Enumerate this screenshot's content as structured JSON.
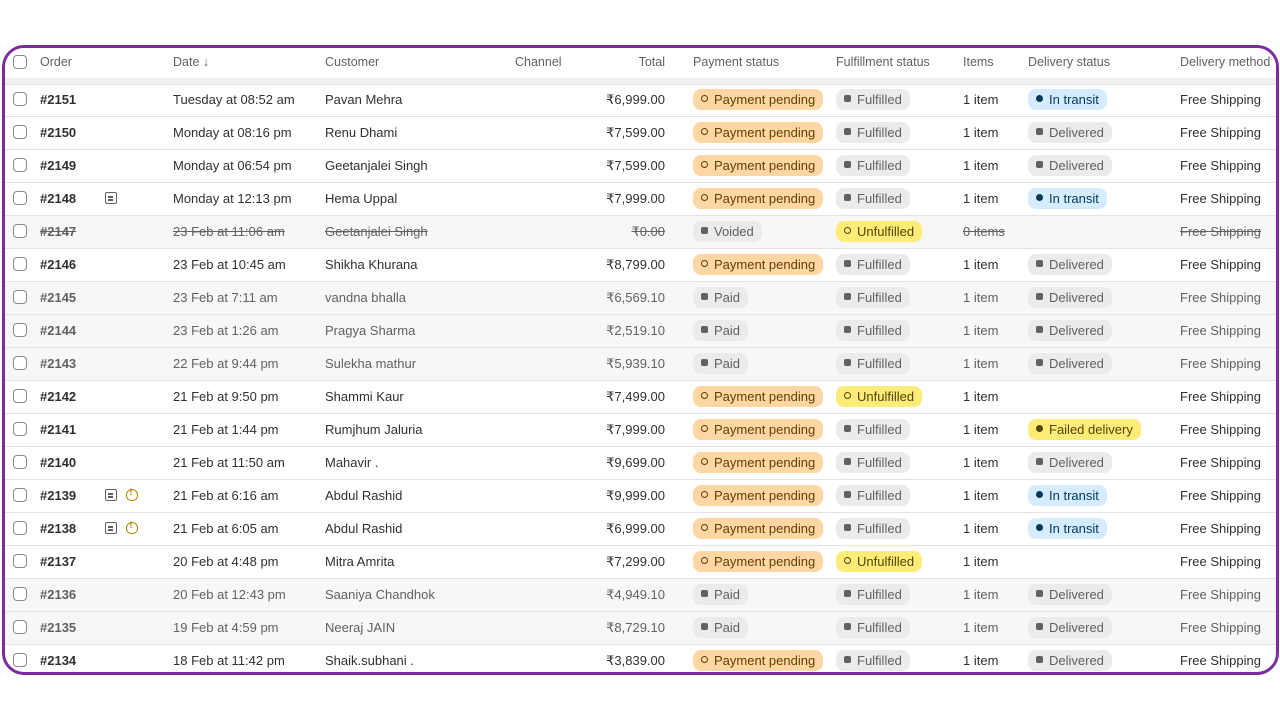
{
  "columns": {
    "order": "Order",
    "date": "Date ↓",
    "customer": "Customer",
    "channel": "Channel",
    "total": "Total",
    "payment_status": "Payment status",
    "fulfillment_status": "Fulfillment status",
    "items": "Items",
    "delivery_status": "Delivery status",
    "delivery_method": "Delivery method"
  },
  "orders": [
    {
      "order": "#2151",
      "date": "Tuesday at 08:52 am",
      "customer": "Pavan Mehra",
      "total": "₹6,999.00",
      "payment": "Payment pending",
      "fulfillment": "Fulfilled",
      "items": "1 item",
      "delivery": "In transit",
      "method": "Free Shipping"
    },
    {
      "order": "#2150",
      "date": "Monday at 08:16 pm",
      "customer": "Renu Dhami",
      "total": "₹7,599.00",
      "payment": "Payment pending",
      "fulfillment": "Fulfilled",
      "items": "1 item",
      "delivery": "Delivered",
      "method": "Free Shipping"
    },
    {
      "order": "#2149",
      "date": "Monday at 06:54 pm",
      "customer": "Geetanjalei Singh",
      "total": "₹7,599.00",
      "payment": "Payment pending",
      "fulfillment": "Fulfilled",
      "items": "1 item",
      "delivery": "Delivered",
      "method": "Free Shipping"
    },
    {
      "order": "#2148",
      "date": "Monday at 12:13 pm",
      "customer": "Hema Uppal",
      "total": "₹7,999.00",
      "payment": "Payment pending",
      "fulfillment": "Fulfilled",
      "items": "1 item",
      "delivery": "In transit",
      "method": "Free Shipping"
    },
    {
      "order": "#2147",
      "date": "23 Feb at 11:06 am",
      "customer": "Geetanjalei Singh",
      "total": "₹0.00",
      "payment": "Voided",
      "fulfillment": "Unfulfilled",
      "items": "0 items",
      "delivery": "",
      "method": "Free Shipping"
    },
    {
      "order": "#2146",
      "date": "23 Feb at 10:45 am",
      "customer": "Shikha Khurana",
      "total": "₹8,799.00",
      "payment": "Payment pending",
      "fulfillment": "Fulfilled",
      "items": "1 item",
      "delivery": "Delivered",
      "method": "Free Shipping"
    },
    {
      "order": "#2145",
      "date": "23 Feb at 7:11 am",
      "customer": "vandna bhalla",
      "total": "₹6,569.10",
      "payment": "Paid",
      "fulfillment": "Fulfilled",
      "items": "1 item",
      "delivery": "Delivered",
      "method": "Free Shipping"
    },
    {
      "order": "#2144",
      "date": "23 Feb at 1:26 am",
      "customer": "Pragya Sharma",
      "total": "₹2,519.10",
      "payment": "Paid",
      "fulfillment": "Fulfilled",
      "items": "1 item",
      "delivery": "Delivered",
      "method": "Free Shipping"
    },
    {
      "order": "#2143",
      "date": "22 Feb at 9:44 pm",
      "customer": "Sulekha mathur",
      "total": "₹5,939.10",
      "payment": "Paid",
      "fulfillment": "Fulfilled",
      "items": "1 item",
      "delivery": "Delivered",
      "method": "Free Shipping"
    },
    {
      "order": "#2142",
      "date": "21 Feb at 9:50 pm",
      "customer": "Shammi Kaur",
      "total": "₹7,499.00",
      "payment": "Payment pending",
      "fulfillment": "Unfulfilled",
      "items": "1 item",
      "delivery": "",
      "method": "Free Shipping"
    },
    {
      "order": "#2141",
      "date": "21 Feb at 1:44 pm",
      "customer": "Rumjhum Jaluria",
      "total": "₹7,999.00",
      "payment": "Payment pending",
      "fulfillment": "Fulfilled",
      "items": "1 item",
      "delivery": "Failed delivery",
      "method": "Free Shipping"
    },
    {
      "order": "#2140",
      "date": "21 Feb at 11:50 am",
      "customer": "Mahavir .",
      "total": "₹9,699.00",
      "payment": "Payment pending",
      "fulfillment": "Fulfilled",
      "items": "1 item",
      "delivery": "Delivered",
      "method": "Free Shipping"
    },
    {
      "order": "#2139",
      "date": "21 Feb at 6:16 am",
      "customer": "Abdul Rashid",
      "total": "₹9,999.00",
      "payment": "Payment pending",
      "fulfillment": "Fulfilled",
      "items": "1 item",
      "delivery": "In transit",
      "method": "Free Shipping"
    },
    {
      "order": "#2138",
      "date": "21 Feb at 6:05 am",
      "customer": "Abdul Rashid",
      "total": "₹6,999.00",
      "payment": "Payment pending",
      "fulfillment": "Fulfilled",
      "items": "1 item",
      "delivery": "In transit",
      "method": "Free Shipping"
    },
    {
      "order": "#2137",
      "date": "20 Feb at 4:48 pm",
      "customer": "Mitra Amrita",
      "total": "₹7,299.00",
      "payment": "Payment pending",
      "fulfillment": "Unfulfilled",
      "items": "1 item",
      "delivery": "",
      "method": "Free Shipping"
    },
    {
      "order": "#2136",
      "date": "20 Feb at 12:43 pm",
      "customer": "Saaniya Chandhok",
      "total": "₹4,949.10",
      "payment": "Paid",
      "fulfillment": "Fulfilled",
      "items": "1 item",
      "delivery": "Delivered",
      "method": "Free Shipping"
    },
    {
      "order": "#2135",
      "date": "19 Feb at 4:59 pm",
      "customer": "Neeraj JAIN",
      "total": "₹8,729.10",
      "payment": "Paid",
      "fulfillment": "Fulfilled",
      "items": "1 item",
      "delivery": "Delivered",
      "method": "Free Shipping"
    },
    {
      "order": "#2134",
      "date": "18 Feb at 11:42 pm",
      "customer": "Shaik.subhani .",
      "total": "₹3,839.00",
      "payment": "Payment pending",
      "fulfillment": "Fulfilled",
      "items": "1 item",
      "delivery": "Delivered",
      "method": "Free Shipping"
    }
  ],
  "row_icons": {
    "#2148": [
      "note-icon"
    ],
    "#2139": [
      "note-icon",
      "risk-alert-icon"
    ],
    "#2138": [
      "note-icon",
      "risk-alert-icon"
    ]
  },
  "colors": {
    "frame_border": "#7b2c9e",
    "payment_pending": "#ffd6a4",
    "unfulfilled": "#ffeb78",
    "in_transit": "#d5ebff",
    "neutral_badge": "#ebebeb"
  }
}
